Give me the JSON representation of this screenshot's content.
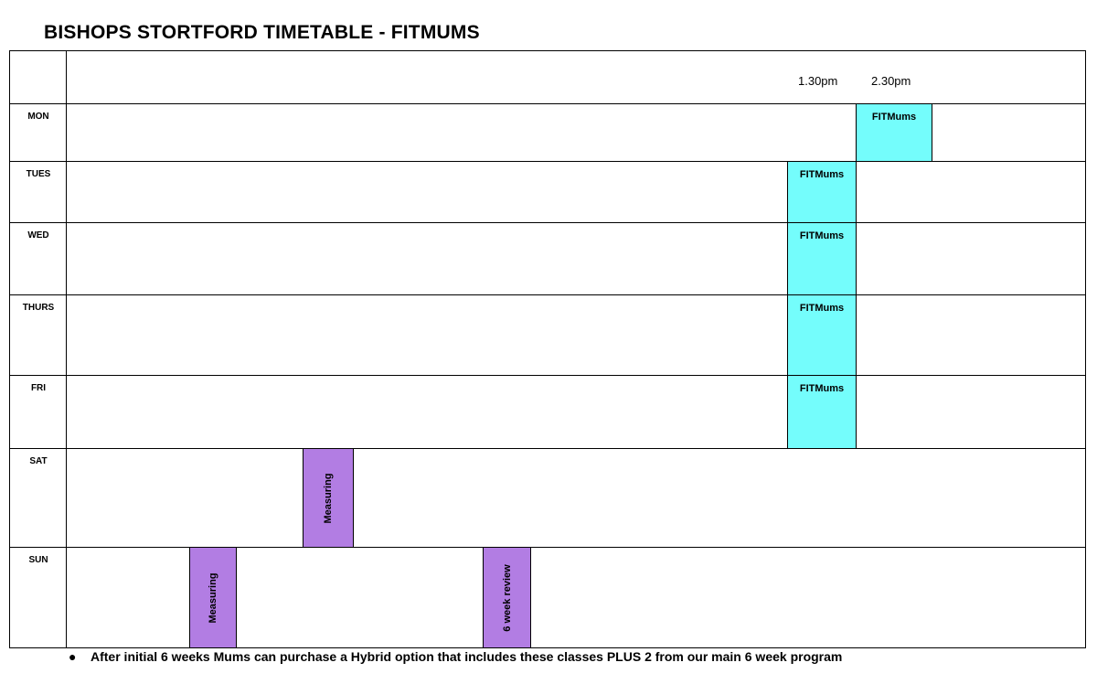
{
  "title": "BISHOPS STORTFORD TIMETABLE - FITMUMS",
  "times": [
    "1.30pm",
    "2.30pm"
  ],
  "days": [
    "MON",
    "TUES",
    "WED",
    "THURS",
    "FRI",
    "SAT",
    "SUN"
  ],
  "sessions": {
    "mon": "FITMums",
    "tues": "FITMums",
    "wed": "FITMums",
    "thurs": "FITMums",
    "fri": "FITMums",
    "sat_measuring": "Measuring",
    "sun_measuring": "Measuring",
    "sun_review": "6 week review"
  },
  "colors": {
    "fitmums": "#74fdfc",
    "measuring": "#b27de3"
  },
  "footnote": {
    "bullet": "●",
    "text": "After initial 6 weeks Mums can purchase a Hybrid option that includes these classes PLUS 2 from our main 6 week program"
  }
}
